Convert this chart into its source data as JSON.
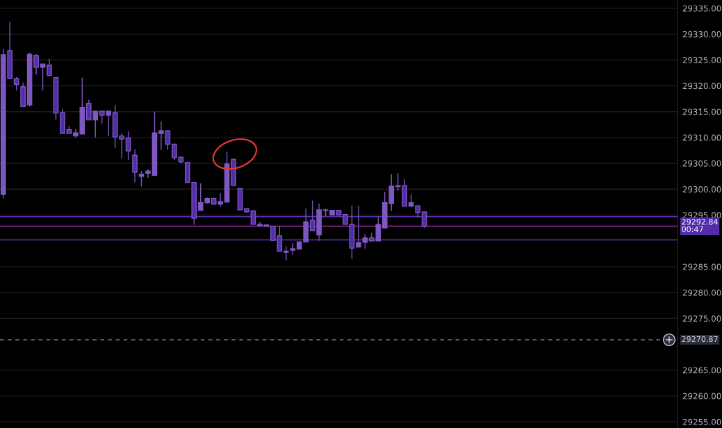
{
  "chart_data": {
    "type": "candlestick",
    "categories": [
      null,
      null,
      null,
      null,
      null,
      null,
      null,
      null,
      null,
      null,
      null,
      null,
      null,
      null,
      null,
      null,
      null,
      null,
      null,
      null,
      null,
      null,
      null,
      null,
      null,
      null,
      null,
      null,
      null,
      null,
      null,
      null,
      null,
      null,
      null,
      null,
      null,
      null,
      null,
      null,
      null,
      null,
      null,
      null,
      null,
      null,
      null,
      null,
      null,
      null,
      null,
      null,
      null,
      null,
      null,
      null,
      null,
      null,
      null,
      null,
      null,
      null,
      null,
      null,
      null,
      null,
      null,
      null,
      null,
      null,
      null,
      null,
      null,
      null,
      null,
      null,
      null,
      null,
      null,
      null,
      null,
      null,
      null,
      null,
      null,
      null,
      null,
      null,
      null,
      null,
      null,
      null,
      null,
      null,
      null,
      null,
      null,
      null,
      null,
      null,
      null,
      null,
      null
    ],
    "ohlc": [
      [
        29299.0,
        29327.2,
        29298.2,
        29326.0
      ],
      [
        29326.8,
        29332.4,
        29321.4,
        29321.4
      ],
      [
        29321.4,
        29321.7,
        29319.1,
        29320.3
      ],
      [
        29319.8,
        29320.6,
        29315.9,
        29316.0
      ],
      [
        29316.3,
        29326.4,
        29316.0,
        29326.1
      ],
      [
        29325.9,
        29326.1,
        29322.2,
        29323.6
      ],
      [
        29323.6,
        29324.2,
        29319.1,
        29324.2
      ],
      [
        29324.0,
        29325.2,
        29322.0,
        29322.0
      ],
      [
        29321.6,
        29321.6,
        29313.4,
        29314.7
      ],
      [
        29314.8,
        29315.5,
        29310.8,
        29310.8
      ],
      [
        29311.5,
        29312.2,
        29310.8,
        29310.8
      ],
      [
        29310.3,
        29311.6,
        29310.0,
        29310.9
      ],
      [
        29310.7,
        29321.6,
        29310.7,
        29315.8
      ],
      [
        29316.6,
        29317.3,
        29313.4,
        29313.4
      ],
      [
        29313.4,
        29315.1,
        29310.0,
        29315.1
      ],
      [
        29315.1,
        29315.1,
        29312.7,
        29314.3
      ],
      [
        29314.3,
        29315.1,
        29310.3,
        29315.1
      ],
      [
        29314.8,
        29316.3,
        29308.0,
        29310.1
      ],
      [
        29310.3,
        29310.8,
        29306.0,
        29309.7
      ],
      [
        29309.9,
        29311.2,
        29305.7,
        29307.4
      ],
      [
        29306.6,
        29307.7,
        29301.3,
        29303.3
      ],
      [
        29302.5,
        29303.5,
        29300.5,
        29302.9
      ],
      [
        29303.1,
        29303.9,
        29302.2,
        29303.5
      ],
      [
        29302.7,
        29315.0,
        29302.7,
        29310.9
      ],
      [
        29310.8,
        29313.1,
        29307.6,
        29311.3
      ],
      [
        29311.3,
        29311.3,
        29307.6,
        29308.7
      ],
      [
        29308.7,
        29308.7,
        29305.7,
        29306.1
      ],
      [
        29306.2,
        29306.2,
        29305.0,
        29305.3
      ],
      [
        29305.2,
        29305.3,
        29301.3,
        29301.3
      ],
      [
        29301.3,
        29301.3,
        29293.1,
        29294.4
      ],
      [
        29295.9,
        29301.1,
        29295.9,
        29297.4
      ],
      [
        29297.4,
        29298.4,
        29297.2,
        29298.2
      ],
      [
        29298.2,
        29298.4,
        29297.1,
        29297.1
      ],
      [
        29297.1,
        29299.2,
        29296.6,
        29297.6
      ],
      [
        29297.5,
        29307.2,
        29297.5,
        29304.9
      ],
      [
        29305.8,
        29305.8,
        29300.7,
        29300.7
      ],
      [
        29300.1,
        29300.1,
        29296.0,
        29296.0
      ],
      [
        29296.2,
        29296.2,
        29295.6,
        29295.6
      ],
      [
        29295.8,
        29295.8,
        29293.2,
        29293.2
      ],
      [
        29292.9,
        29293.7,
        29292.9,
        29293.2
      ],
      [
        29292.8,
        29293.1,
        29292.8,
        29293.1
      ],
      [
        29292.8,
        29292.8,
        29290.0,
        29290.1
      ],
      [
        29291.0,
        29292.8,
        29288.0,
        29288.0
      ],
      [
        29287.8,
        29288.9,
        29286.2,
        29288.0
      ],
      [
        29288.2,
        29289.6,
        29287.3,
        29288.5
      ],
      [
        29288.4,
        29289.8,
        29288.4,
        29289.8
      ],
      [
        29289.8,
        29296.2,
        29289.8,
        29293.7
      ],
      [
        29294.0,
        29297.8,
        29292.0,
        29292.0
      ],
      [
        29291.2,
        29297.2,
        29290.0,
        29296.0
      ],
      [
        29295.9,
        29296.2,
        29294.8,
        29296.0
      ],
      [
        29295.0,
        29295.9,
        29295.0,
        29295.9
      ],
      [
        29295.9,
        29295.9,
        29295.0,
        29295.0
      ],
      [
        29295.1,
        29295.1,
        29293.2,
        29293.2
      ],
      [
        29293.2,
        29296.8,
        29286.5,
        29288.6
      ],
      [
        29288.8,
        29296.8,
        29288.8,
        29289.7
      ],
      [
        29289.7,
        29291.3,
        29288.5,
        29290.6
      ],
      [
        29290.6,
        29291.6,
        29290.0,
        29290.0
      ],
      [
        29290.0,
        29294.7,
        29290.0,
        29293.2
      ],
      [
        29292.5,
        29299.5,
        29292.4,
        29297.4
      ],
      [
        29297.2,
        29302.9,
        29295.8,
        29300.6
      ],
      [
        29300.5,
        29303.1,
        29299.7,
        29300.7
      ],
      [
        29300.7,
        29301.9,
        29296.7,
        29296.7
      ],
      [
        29296.7,
        29299.0,
        29296.7,
        29297.4
      ],
      [
        29296.8,
        29296.8,
        29294.5,
        29295.5
      ],
      [
        29295.6,
        29295.6,
        29292.5,
        29292.8
      ],
      null,
      null,
      null,
      null,
      null,
      null,
      null,
      null,
      null,
      null,
      null,
      null,
      null,
      null,
      null,
      null,
      null,
      null,
      null,
      null,
      null,
      null,
      null,
      null,
      null,
      null,
      null,
      null,
      null,
      null,
      null,
      null,
      null,
      null,
      null,
      null,
      null,
      null
    ],
    "colors": [
      "#7e57c2",
      "#512da8",
      "#512da8",
      "#512da8",
      "#7e57c2",
      "#512da8",
      "#7e57c2",
      "#512da8",
      "#512da8",
      "#512da8",
      "#512da8",
      "#7e57c2",
      "#7e57c2",
      "#512da8",
      "#7e57c2",
      "#512da8",
      "#7e57c2",
      "#512da8",
      "#512da8",
      "#512da8",
      "#512da8",
      "#7e57c2",
      "#7e57c2",
      "#7e57c2",
      "#7e57c2",
      "#512da8",
      "#512da8",
      "#512da8",
      "#512da8",
      "#512da8",
      "#7e57c2",
      "#7e57c2",
      "#512da8",
      "#7e57c2",
      "#7e57c2",
      "#512da8",
      "#512da8",
      "#512da8",
      "#512da8",
      "#7e57c2",
      "#7e57c2",
      "#512da8",
      "#512da8",
      "#7e57c2",
      "#7e57c2",
      "#7e57c2",
      "#7e57c2",
      "#512da8",
      "#7e57c2",
      "#7e57c2",
      "#7e57c2",
      "#512da8",
      "#512da8",
      "#512da8",
      "#7e57c2",
      "#7e57c2",
      "#512da8",
      "#7e57c2",
      "#7e57c2",
      "#7e57c2",
      "#7e57c2",
      "#512da8",
      "#7e57c2",
      "#512da8",
      "#512da8",
      null,
      null,
      null,
      null,
      null,
      null,
      null,
      null,
      null,
      null,
      null,
      null,
      null,
      null,
      null,
      null,
      null,
      null,
      null,
      null,
      null,
      null,
      null,
      null,
      null,
      null,
      null,
      null,
      null,
      null,
      null,
      null,
      null,
      null,
      null,
      null,
      null,
      null
    ],
    "ylim": [
      29253.8,
      29336.6
    ],
    "yticks": [
      {
        "value": 29255,
        "label": "29255.00"
      },
      {
        "value": 29260,
        "label": "29260.00"
      },
      {
        "value": 29265,
        "label": "29265.00"
      },
      {
        "value": 29275,
        "label": "29275.00"
      },
      {
        "value": 29280,
        "label": "29280.00"
      },
      {
        "value": 29285,
        "label": "29285.00"
      },
      {
        "value": 29295,
        "label": "29295.00"
      },
      {
        "value": 29300,
        "label": "29300.00"
      },
      {
        "value": 29305,
        "label": "29305.00"
      },
      {
        "value": 29310,
        "label": "29310.00"
      },
      {
        "value": 29315,
        "label": "29315.00"
      },
      {
        "value": 29320,
        "label": "29320.00"
      },
      {
        "value": 29325,
        "label": "29325.00"
      },
      {
        "value": 29330,
        "label": "29330.00"
      },
      {
        "value": 29335,
        "label": "29335.00"
      }
    ],
    "ref_lines": [
      {
        "axis": "y",
        "value": 29294.7,
        "color": "#5e35b1",
        "line_style": "solid"
      },
      {
        "axis": "y",
        "value": 29290.2,
        "color": "#5e35b1",
        "line_style": "solid"
      },
      {
        "axis": "y",
        "value": 29292.84,
        "label": "29292.84\n00:47",
        "color": "#9c27b0",
        "line_style": "solid"
      },
      {
        "axis": "y",
        "value": 29270.87,
        "label": "29270.87",
        "color": "#787b86",
        "line_style": "dashed"
      }
    ],
    "tick_labels": "y",
    "grid": "y"
  }
}
